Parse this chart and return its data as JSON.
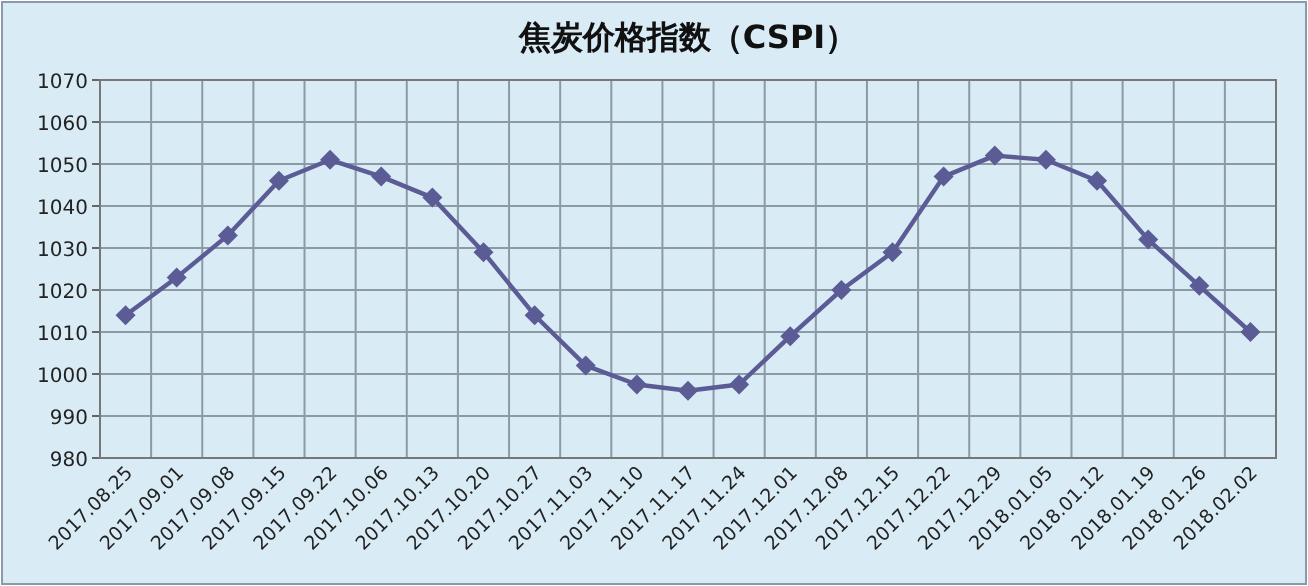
{
  "chart_data": {
    "type": "line",
    "title": "焦炭价格指数（CSPI）",
    "categories": [
      "2017.08.25",
      "2017.09.01",
      "2017.09.08",
      "2017.09.15",
      "2017.09.22",
      "2017.10.06",
      "2017.10.13",
      "2017.10.20",
      "2017.10.27",
      "2017.11.03",
      "2017.11.10",
      "2017.11.17",
      "2017.11.24",
      "2017.12.01",
      "2017.12.08",
      "2017.12.15",
      "2017.12.22",
      "2017.12.29",
      "2018.01.05",
      "2018.01.12",
      "2018.01.19",
      "2018.01.26",
      "2018.02.02"
    ],
    "series": [
      {
        "color": "#5b5b95",
        "values": [
          1014,
          1023,
          1033,
          1046,
          1051,
          1047,
          1042,
          1029,
          1014,
          1002,
          997.5,
          996,
          997.5,
          1009,
          1020,
          1029,
          1047,
          1052,
          1051,
          1046,
          1032,
          1021,
          1010
        ]
      }
    ],
    "ylim": [
      980,
      1070
    ],
    "yticks": [
      980,
      990,
      1000,
      1010,
      1020,
      1030,
      1040,
      1050,
      1060,
      1070
    ],
    "grid": true,
    "marker": "diamond",
    "line_style": "solid"
  }
}
